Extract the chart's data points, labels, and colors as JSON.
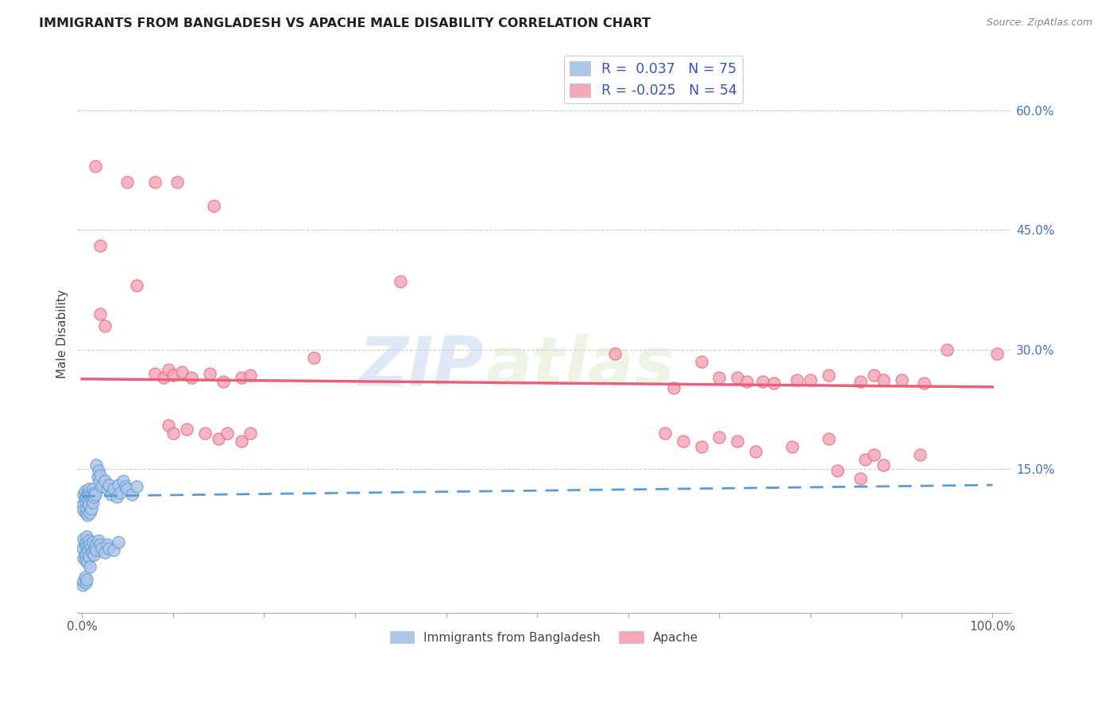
{
  "title": "IMMIGRANTS FROM BANGLADESH VS APACHE MALE DISABILITY CORRELATION CHART",
  "source": "Source: ZipAtlas.com",
  "ylabel": "Male Disability",
  "xlim": [
    -0.005,
    1.02
  ],
  "ylim": [
    -0.03,
    0.67
  ],
  "x_ticks": [
    0.0,
    0.1,
    0.2,
    0.3,
    0.4,
    0.5,
    0.6,
    0.7,
    0.8,
    0.9,
    1.0
  ],
  "x_tick_labels": [
    "0.0%",
    "",
    "",
    "",
    "",
    "",
    "",
    "",
    "",
    "",
    "100.0%"
  ],
  "y_ticks_right": [
    0.15,
    0.3,
    0.45,
    0.6
  ],
  "y_tick_labels_right": [
    "15.0%",
    "30.0%",
    "45.0%",
    "60.0%"
  ],
  "watermark_zip": "ZIP",
  "watermark_atlas": "atlas",
  "blue_scatter_color": "#aec6e8",
  "pink_scatter_color": "#f4a8b8",
  "blue_line_color": "#5b9bd5",
  "pink_line_color": "#e8607a",
  "grid_color": "#cccccc",
  "pink_trend_x": [
    0.0,
    1.0
  ],
  "pink_trend_y": [
    0.263,
    0.253
  ],
  "blue_trend_x": [
    0.0,
    1.0
  ],
  "blue_trend_y": [
    0.116,
    0.13
  ],
  "bangladesh_points": [
    [
      0.001,
      0.105
    ],
    [
      0.002,
      0.118
    ],
    [
      0.002,
      0.098
    ],
    [
      0.003,
      0.122
    ],
    [
      0.003,
      0.112
    ],
    [
      0.004,
      0.108
    ],
    [
      0.004,
      0.095
    ],
    [
      0.005,
      0.115
    ],
    [
      0.005,
      0.1
    ],
    [
      0.006,
      0.12
    ],
    [
      0.006,
      0.092
    ],
    [
      0.007,
      0.118
    ],
    [
      0.007,
      0.11
    ],
    [
      0.008,
      0.125
    ],
    [
      0.008,
      0.105
    ],
    [
      0.009,
      0.118
    ],
    [
      0.009,
      0.095
    ],
    [
      0.01,
      0.112
    ],
    [
      0.01,
      0.1
    ],
    [
      0.011,
      0.118
    ],
    [
      0.012,
      0.125
    ],
    [
      0.012,
      0.108
    ],
    [
      0.013,
      0.115
    ],
    [
      0.014,
      0.12
    ],
    [
      0.015,
      0.118
    ],
    [
      0.016,
      0.155
    ],
    [
      0.017,
      0.14
    ],
    [
      0.018,
      0.148
    ],
    [
      0.019,
      0.135
    ],
    [
      0.02,
      0.142
    ],
    [
      0.022,
      0.128
    ],
    [
      0.025,
      0.135
    ],
    [
      0.028,
      0.125
    ],
    [
      0.03,
      0.13
    ],
    [
      0.032,
      0.118
    ],
    [
      0.035,
      0.125
    ],
    [
      0.038,
      0.115
    ],
    [
      0.04,
      0.13
    ],
    [
      0.042,
      0.12
    ],
    [
      0.045,
      0.135
    ],
    [
      0.048,
      0.128
    ],
    [
      0.05,
      0.125
    ],
    [
      0.055,
      0.118
    ],
    [
      0.06,
      0.128
    ],
    [
      0.001,
      0.05
    ],
    [
      0.002,
      0.062
    ],
    [
      0.002,
      0.038
    ],
    [
      0.003,
      0.055
    ],
    [
      0.003,
      0.042
    ],
    [
      0.004,
      0.058
    ],
    [
      0.004,
      0.035
    ],
    [
      0.005,
      0.065
    ],
    [
      0.005,
      0.045
    ],
    [
      0.006,
      0.055
    ],
    [
      0.006,
      0.032
    ],
    [
      0.007,
      0.048
    ],
    [
      0.008,
      0.06
    ],
    [
      0.008,
      0.04
    ],
    [
      0.009,
      0.055
    ],
    [
      0.009,
      0.028
    ],
    [
      0.01,
      0.052
    ],
    [
      0.011,
      0.045
    ],
    [
      0.012,
      0.058
    ],
    [
      0.013,
      0.042
    ],
    [
      0.014,
      0.05
    ],
    [
      0.015,
      0.055
    ],
    [
      0.016,
      0.048
    ],
    [
      0.018,
      0.06
    ],
    [
      0.02,
      0.055
    ],
    [
      0.022,
      0.05
    ],
    [
      0.025,
      0.045
    ],
    [
      0.028,
      0.055
    ],
    [
      0.03,
      0.05
    ],
    [
      0.035,
      0.048
    ],
    [
      0.04,
      0.058
    ],
    [
      0.001,
      0.005
    ],
    [
      0.002,
      0.01
    ],
    [
      0.003,
      0.015
    ],
    [
      0.004,
      0.008
    ],
    [
      0.005,
      0.012
    ]
  ],
  "apache_points": [
    [
      0.015,
      0.53
    ],
    [
      0.05,
      0.51
    ],
    [
      0.08,
      0.51
    ],
    [
      0.105,
      0.51
    ],
    [
      0.145,
      0.48
    ],
    [
      0.02,
      0.43
    ],
    [
      0.06,
      0.38
    ],
    [
      0.35,
      0.385
    ],
    [
      0.02,
      0.345
    ],
    [
      0.025,
      0.33
    ],
    [
      0.08,
      0.27
    ],
    [
      0.09,
      0.265
    ],
    [
      0.095,
      0.275
    ],
    [
      0.1,
      0.268
    ],
    [
      0.11,
      0.272
    ],
    [
      0.12,
      0.265
    ],
    [
      0.14,
      0.27
    ],
    [
      0.155,
      0.26
    ],
    [
      0.175,
      0.265
    ],
    [
      0.185,
      0.268
    ],
    [
      0.255,
      0.29
    ],
    [
      0.585,
      0.295
    ],
    [
      0.65,
      0.252
    ],
    [
      0.68,
      0.285
    ],
    [
      0.7,
      0.265
    ],
    [
      0.72,
      0.265
    ],
    [
      0.73,
      0.26
    ],
    [
      0.748,
      0.26
    ],
    [
      0.76,
      0.258
    ],
    [
      0.785,
      0.262
    ],
    [
      0.8,
      0.262
    ],
    [
      0.82,
      0.268
    ],
    [
      0.855,
      0.26
    ],
    [
      0.87,
      0.268
    ],
    [
      0.88,
      0.262
    ],
    [
      0.9,
      0.262
    ],
    [
      0.925,
      0.258
    ],
    [
      0.95,
      0.3
    ],
    [
      1.005,
      0.295
    ],
    [
      0.095,
      0.205
    ],
    [
      0.1,
      0.195
    ],
    [
      0.115,
      0.2
    ],
    [
      0.135,
      0.195
    ],
    [
      0.15,
      0.188
    ],
    [
      0.16,
      0.195
    ],
    [
      0.175,
      0.185
    ],
    [
      0.185,
      0.195
    ],
    [
      0.64,
      0.195
    ],
    [
      0.66,
      0.185
    ],
    [
      0.68,
      0.178
    ],
    [
      0.7,
      0.19
    ],
    [
      0.72,
      0.185
    ],
    [
      0.74,
      0.172
    ],
    [
      0.78,
      0.178
    ],
    [
      0.82,
      0.188
    ],
    [
      0.86,
      0.162
    ],
    [
      0.87,
      0.168
    ],
    [
      0.88,
      0.155
    ],
    [
      0.92,
      0.168
    ],
    [
      0.83,
      0.148
    ],
    [
      0.855,
      0.138
    ]
  ]
}
